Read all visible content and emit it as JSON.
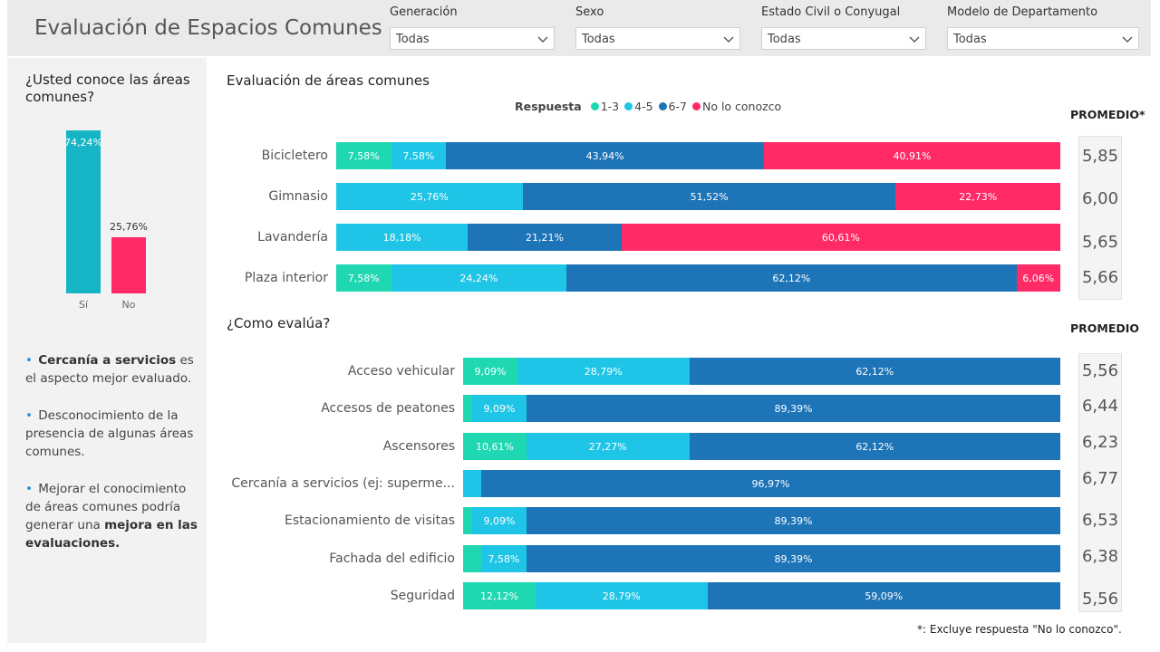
{
  "title": "Evaluación de Espacios Comunes",
  "filters": [
    {
      "label": "Generación",
      "value": "Todas"
    },
    {
      "label": "Sexo",
      "value": "Todas"
    },
    {
      "label": "Estado Civil o Conyugal",
      "value": "Todas"
    },
    {
      "label": "Modelo de Departamento",
      "value": "Todas"
    }
  ],
  "colors": {
    "c13": "#1fd8b2",
    "c45": "#1ec5e6",
    "c67": "#1d74b7",
    "noconozco": "#ff2a66",
    "si": "#16b5c5",
    "no": "#ff2a66"
  },
  "knows": {
    "question": "¿Usted conoce las áreas comunes?",
    "chart_data": {
      "type": "bar",
      "categories": [
        "Sí",
        "No"
      ],
      "values": [
        74.24,
        25.76
      ],
      "value_labels": [
        "74,24%",
        "25,76%"
      ]
    }
  },
  "notes": [
    {
      "bold": "Cercanía a servicios",
      "text": " es el aspecto mejor evaluado."
    },
    {
      "text": "Desconocimiento de la presencia de algunas áreas comunes."
    },
    {
      "pre": "Mejorar el conocimiento de áreas comunes podría generar una ",
      "bold": "mejora en las evaluaciones."
    }
  ],
  "areas": {
    "title": "Evaluación de áreas comunes",
    "legend_title": "Respuesta",
    "legend": [
      "1-3",
      "4-5",
      "6-7",
      "No lo conozco"
    ],
    "promedio_header": "PROMEDIO*",
    "chart_data": {
      "type": "bar",
      "stacked": true,
      "orientation": "horizontal",
      "categories": [
        "Bicicletero",
        "Gimnasio",
        "Lavandería",
        "Plaza interior"
      ],
      "series": [
        {
          "name": "1-3",
          "values": [
            7.58,
            0,
            0,
            7.58
          ],
          "labels": [
            "7,58%",
            "",
            "",
            "7,58%"
          ]
        },
        {
          "name": "4-5",
          "values": [
            7.58,
            25.76,
            18.18,
            24.24
          ],
          "labels": [
            "7,58%",
            "25,76%",
            "18,18%",
            "24,24%"
          ]
        },
        {
          "name": "6-7",
          "values": [
            43.94,
            51.52,
            21.21,
            62.12
          ],
          "labels": [
            "43,94%",
            "51,52%",
            "21,21%",
            "62,12%"
          ]
        },
        {
          "name": "No lo conozco",
          "values": [
            40.91,
            22.73,
            60.61,
            6.06
          ],
          "labels": [
            "40,91%",
            "22,73%",
            "60,61%",
            "6,06%"
          ]
        }
      ],
      "promedio": [
        "5,85",
        "6,00",
        "5,65",
        "5,66"
      ]
    }
  },
  "evalua": {
    "title": "¿Como evalúa?",
    "promedio_header": "PROMEDIO",
    "chart_data": {
      "type": "bar",
      "stacked": true,
      "orientation": "horizontal",
      "categories": [
        "Acceso vehicular",
        "Accesos de peatones",
        "Ascensores",
        "Cercanía a servicios (ej: superme...",
        "Estacionamiento de visitas",
        "Fachada del edificio",
        "Seguridad"
      ],
      "series": [
        {
          "name": "1-3",
          "values": [
            9.09,
            1.52,
            10.61,
            0,
            1.52,
            3.03,
            12.12
          ],
          "labels": [
            "9,09%",
            "",
            "10,61%",
            "",
            "",
            "",
            "12,12%"
          ]
        },
        {
          "name": "4-5",
          "values": [
            28.79,
            9.09,
            27.27,
            3.03,
            9.09,
            7.58,
            28.79
          ],
          "labels": [
            "28,79%",
            "9,09%",
            "27,27%",
            "",
            "9,09%",
            "7,58%",
            "28,79%"
          ]
        },
        {
          "name": "6-7",
          "values": [
            62.12,
            89.39,
            62.12,
            96.97,
            89.39,
            89.39,
            59.09
          ],
          "labels": [
            "62,12%",
            "89,39%",
            "62,12%",
            "96,97%",
            "89,39%",
            "89,39%",
            "59,09%"
          ]
        }
      ],
      "promedio": [
        "5,56",
        "6,44",
        "6,23",
        "6,77",
        "6,53",
        "6,38",
        "5,56"
      ]
    }
  },
  "footnote": "*: Excluye respuesta \"No lo conozco\"."
}
